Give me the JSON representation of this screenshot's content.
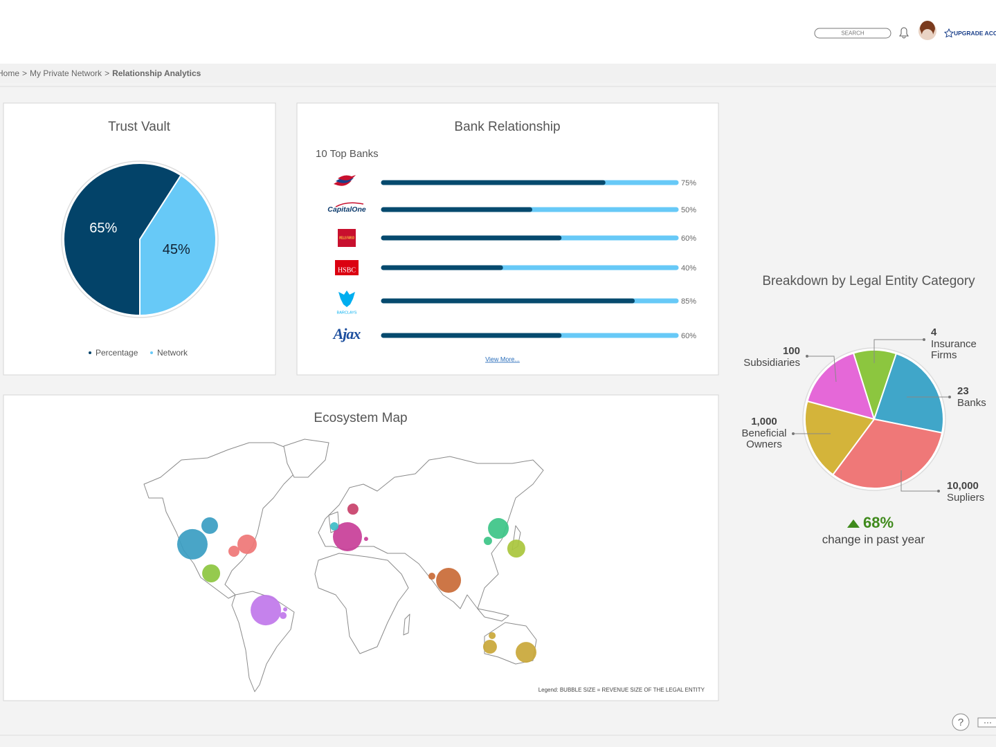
{
  "header": {
    "search_placeholder": "SEARCH",
    "upgrade": "UPGRADE ACCOUNT"
  },
  "breadcrumb": {
    "items": [
      "Home",
      "My Private Network",
      "Relationship Analytics"
    ],
    "separator": ">"
  },
  "chart_data": [
    {
      "type": "pie",
      "title": "Trust Vault",
      "categories": [
        "Percentage",
        "Network"
      ],
      "values": [
        65,
        45
      ],
      "value_labels": [
        "65%",
        "45%"
      ],
      "colors": [
        "#034369",
        "#67c9f7"
      ],
      "legend": "bottom"
    },
    {
      "type": "bar",
      "orientation": "horizontal",
      "title": "Bank Relationship",
      "subtitle": "10 Top Banks",
      "categories": [
        null,
        "CapitalOne",
        "WELLS FARGO",
        "HSBC",
        "BARCLAYS",
        "Ajax"
      ],
      "values": [
        75,
        50,
        60,
        40,
        85,
        60
      ],
      "value_labels": [
        "75%",
        "50%",
        "60%",
        "40%",
        "85%",
        "60%"
      ],
      "xlim": [
        0,
        100
      ],
      "color": "#064a6e",
      "track_color": "#67c9f7",
      "link": "View More..."
    },
    {
      "type": "bubble-map",
      "title": "Ecosystem Map",
      "x": [
        -122.3,
        -108.1,
        -106.9,
        -77.4,
        -88.2,
        -62.0,
        -47.8,
        -46.1,
        5.0,
        9.5,
        -5.8,
        20.3,
        88.0,
        74.3,
        128.9,
        120.3,
        143.6,
        151.6,
        122.0,
        123.8
      ],
      "y": [
        41.7,
        54.8,
        21.3,
        41.7,
        36.8,
        -4.5,
        -8.3,
        -4.0,
        47.0,
        66.4,
        54.3,
        45.5,
        16.4,
        19.3,
        52.8,
        44.1,
        38.7,
        -34.1,
        -30.2,
        -22.4
      ],
      "sizes": [
        22,
        12,
        13,
        14,
        8,
        22,
        5,
        3,
        21,
        8,
        6,
        3,
        18,
        5,
        15,
        6,
        13,
        15,
        10,
        5
      ],
      "colors": [
        "#3a9dc2",
        "#3a9dc2",
        "#8cc63f",
        "#ef7676",
        "#ef7676",
        "#c077ea",
        "#c077ea",
        "#c077ea",
        "#c83e98",
        "#c8406a",
        "#3cbcc6",
        "#c83e98",
        "#c96a36",
        "#c96a36",
        "#3cc487",
        "#3cc487",
        "#a9c63c",
        "#c9a738",
        "#c9a738",
        "#c9a738"
      ],
      "legend_note": "Legend: BUBBLE SIZE = REVENUE SIZE OF THE LEGAL ENTITY"
    },
    {
      "type": "pie",
      "title": "Breakdown by Legal Entity Category",
      "categories": [
        "Subsidiaries",
        "Insurance Firms",
        "Banks",
        "Supliers",
        "Beneficial Owners"
      ],
      "counts": [
        "100",
        "4",
        "23",
        "10,000",
        "1,000"
      ],
      "values": [
        16,
        10,
        23,
        32,
        19
      ],
      "colors": [
        "#e568d8",
        "#8cc63f",
        "#40a6c9",
        "#ef7878",
        "#d4b43a"
      ],
      "change_label": "68%",
      "change_caption": "change in past year"
    }
  ],
  "footer": {
    "help": "?"
  }
}
